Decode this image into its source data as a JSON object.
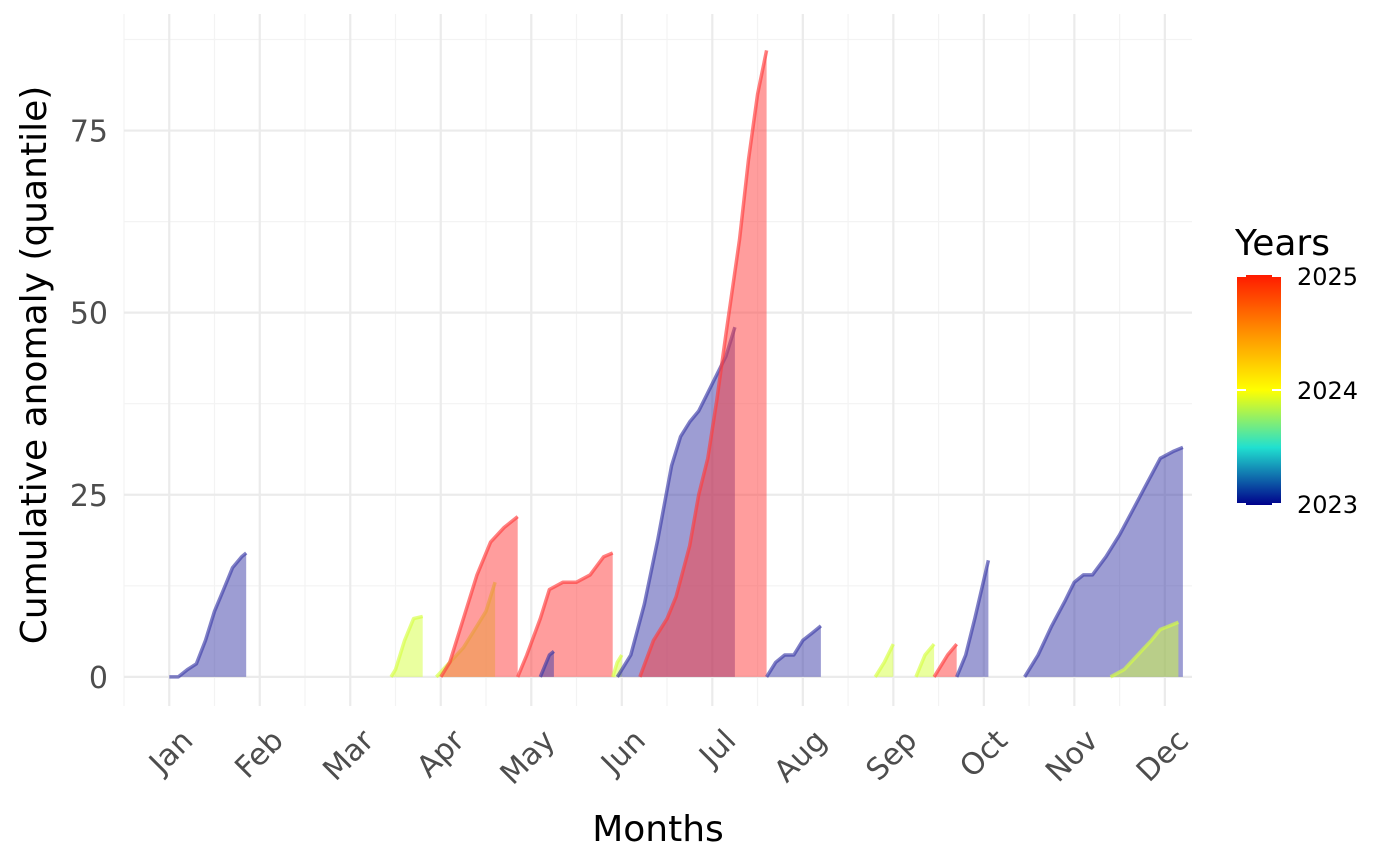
{
  "chart_data": {
    "type": "area",
    "xlabel": "Months",
    "ylabel": "Cumulative anomaly (quantile)",
    "x_ticks": [
      "Jan",
      "Feb",
      "Mar",
      "Apr",
      "May",
      "Jun",
      "Jul",
      "Aug",
      "Sep",
      "Oct",
      "Nov",
      "Dec"
    ],
    "xlim": [
      -0.5,
      11.3
    ],
    "ylim": [
      -4,
      91
    ],
    "y_ticks": [
      0,
      25,
      50,
      75
    ],
    "grid": true,
    "legend": {
      "title": "Years",
      "placement": "right",
      "labels": [
        "2025",
        "2024",
        "2023"
      ],
      "scale": [
        {
          "year": 2023,
          "color": "#00008b"
        },
        {
          "year": 2023.5,
          "color": "#20e0d0"
        },
        {
          "year": 2024,
          "color": "#ffff00"
        },
        {
          "year": 2024.5,
          "color": "#ff9000"
        },
        {
          "year": 2025,
          "color": "#ff1a00"
        }
      ]
    },
    "series": [
      {
        "year": 2023,
        "color": "#3c3ca8",
        "points": [
          [
            0.0,
            0
          ],
          [
            0.1,
            0
          ],
          [
            0.2,
            1
          ],
          [
            0.3,
            1.8
          ],
          [
            0.4,
            5
          ],
          [
            0.5,
            9
          ],
          [
            0.6,
            12
          ],
          [
            0.7,
            15
          ],
          [
            0.8,
            16.5
          ],
          [
            0.85,
            17
          ]
        ]
      },
      {
        "year": 2024,
        "color": "#d5ff40",
        "points": [
          [
            2.45,
            0
          ],
          [
            2.5,
            1
          ],
          [
            2.6,
            5
          ],
          [
            2.7,
            8
          ],
          [
            2.8,
            8.3
          ]
        ]
      },
      {
        "year": 2024,
        "color": "#d5ff40",
        "points": [
          [
            2.95,
            0
          ],
          [
            3.1,
            2
          ],
          [
            3.25,
            4
          ],
          [
            3.4,
            7
          ],
          [
            3.5,
            9
          ],
          [
            3.6,
            13
          ]
        ]
      },
      {
        "year": 2025,
        "color": "#ff3c3c",
        "points": [
          [
            3.0,
            0
          ],
          [
            3.1,
            2
          ],
          [
            3.25,
            8
          ],
          [
            3.4,
            14
          ],
          [
            3.55,
            18.5
          ],
          [
            3.7,
            20.5
          ],
          [
            3.85,
            22
          ]
        ]
      },
      {
        "year": 2025,
        "color": "#ff3c3c",
        "points": [
          [
            3.85,
            0
          ],
          [
            3.95,
            3
          ],
          [
            4.1,
            8
          ],
          [
            4.2,
            12
          ],
          [
            4.35,
            13
          ],
          [
            4.5,
            13
          ],
          [
            4.65,
            14
          ],
          [
            4.8,
            16.5
          ],
          [
            4.9,
            17
          ]
        ]
      },
      {
        "year": 2023,
        "color": "#3c3ca8",
        "points": [
          [
            4.1,
            0
          ],
          [
            4.2,
            3
          ],
          [
            4.25,
            3.5
          ]
        ]
      },
      {
        "year": 2024,
        "color": "#d5ff40",
        "points": [
          [
            4.9,
            0
          ],
          [
            4.95,
            2
          ],
          [
            5.0,
            3
          ]
        ]
      },
      {
        "year": 2023,
        "color": "#3c3ca8",
        "points": [
          [
            4.95,
            0
          ],
          [
            5.1,
            3
          ],
          [
            5.25,
            10
          ],
          [
            5.4,
            19
          ],
          [
            5.55,
            29
          ],
          [
            5.65,
            33
          ],
          [
            5.75,
            35
          ],
          [
            5.85,
            36.5
          ],
          [
            5.95,
            39
          ],
          [
            6.05,
            41.5
          ],
          [
            6.15,
            44
          ],
          [
            6.25,
            48
          ]
        ]
      },
      {
        "year": 2025,
        "color": "#ff3c3c",
        "points": [
          [
            5.2,
            0
          ],
          [
            5.35,
            5
          ],
          [
            5.5,
            8
          ],
          [
            5.6,
            11
          ],
          [
            5.75,
            18
          ],
          [
            5.85,
            25
          ],
          [
            5.95,
            30
          ],
          [
            6.05,
            38
          ],
          [
            6.15,
            47
          ],
          [
            6.3,
            60
          ],
          [
            6.4,
            71
          ],
          [
            6.5,
            80
          ],
          [
            6.6,
            86
          ]
        ]
      },
      {
        "year": 2023,
        "color": "#3c3ca8",
        "points": [
          [
            6.6,
            0
          ],
          [
            6.7,
            2
          ],
          [
            6.8,
            3
          ],
          [
            6.9,
            3
          ],
          [
            7.0,
            5
          ],
          [
            7.1,
            6
          ],
          [
            7.2,
            7
          ]
        ]
      },
      {
        "year": 2024,
        "color": "#d5ff40",
        "points": [
          [
            7.8,
            0
          ],
          [
            7.9,
            2
          ],
          [
            8.0,
            4.5
          ]
        ]
      },
      {
        "year": 2024,
        "color": "#d5ff40",
        "points": [
          [
            8.25,
            0
          ],
          [
            8.35,
            3
          ],
          [
            8.45,
            4.5
          ]
        ]
      },
      {
        "year": 2025,
        "color": "#ff3c3c",
        "points": [
          [
            8.45,
            0
          ],
          [
            8.6,
            3
          ],
          [
            8.7,
            4.5
          ]
        ]
      },
      {
        "year": 2023,
        "color": "#3c3ca8",
        "points": [
          [
            8.7,
            0
          ],
          [
            8.8,
            3
          ],
          [
            8.9,
            8
          ],
          [
            9.05,
            16
          ]
        ]
      },
      {
        "year": 2023,
        "color": "#3c3ca8",
        "points": [
          [
            9.45,
            0
          ],
          [
            9.6,
            3
          ],
          [
            9.75,
            7
          ],
          [
            9.9,
            10.5
          ],
          [
            10.0,
            13
          ],
          [
            10.1,
            14
          ],
          [
            10.2,
            14
          ],
          [
            10.35,
            16.5
          ],
          [
            10.5,
            19.5
          ],
          [
            10.65,
            23
          ],
          [
            10.8,
            26.5
          ],
          [
            10.95,
            30
          ],
          [
            11.1,
            31
          ],
          [
            11.2,
            31.5
          ]
        ]
      },
      {
        "year": 2024,
        "color": "#d5ff40",
        "points": [
          [
            10.4,
            0
          ],
          [
            10.55,
            1
          ],
          [
            10.7,
            3
          ],
          [
            10.85,
            5
          ],
          [
            10.95,
            6.5
          ],
          [
            11.05,
            7
          ],
          [
            11.15,
            7.5
          ]
        ]
      }
    ]
  }
}
